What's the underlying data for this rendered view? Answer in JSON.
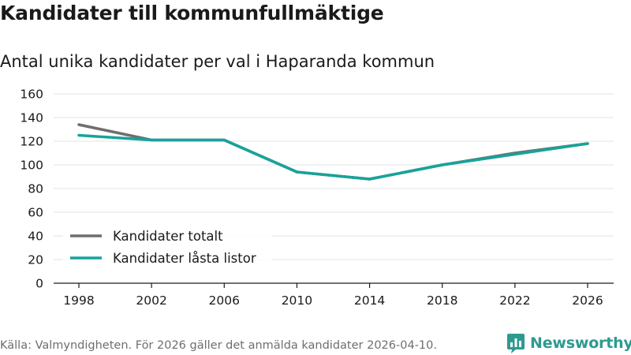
{
  "chart_data": {
    "type": "line",
    "title": "Kandidater till kommunfullmäktige",
    "subtitle": "Antal unika kandidater per val i Haparanda kommun",
    "xlabel": "",
    "ylabel": "",
    "x": [
      1998,
      2002,
      2006,
      2010,
      2014,
      2018,
      2022,
      2026
    ],
    "xticks": [
      "1998",
      "2002",
      "2006",
      "2010",
      "2014",
      "2018",
      "2022",
      "2026"
    ],
    "ylim": [
      0,
      160
    ],
    "yticks": [
      "0",
      "20",
      "40",
      "60",
      "80",
      "100",
      "120",
      "140",
      "160"
    ],
    "grid": true,
    "legend_position": "bottom-left",
    "series": [
      {
        "name": "Kandidater totalt",
        "color": "#6e6e6e",
        "values": [
          134,
          121,
          121,
          94,
          88,
          100,
          110,
          118
        ]
      },
      {
        "name": "Kandidater låsta listor",
        "color": "#16a39b",
        "values": [
          125,
          121,
          121,
          94,
          88,
          100,
          109,
          118
        ]
      }
    ]
  },
  "source": "Källa: Valmyndigheten. För 2026 gäller det anmälda kandidater 2026-04-10.",
  "logo": {
    "text": "Newsworthy",
    "color": "#2d9a8f"
  }
}
